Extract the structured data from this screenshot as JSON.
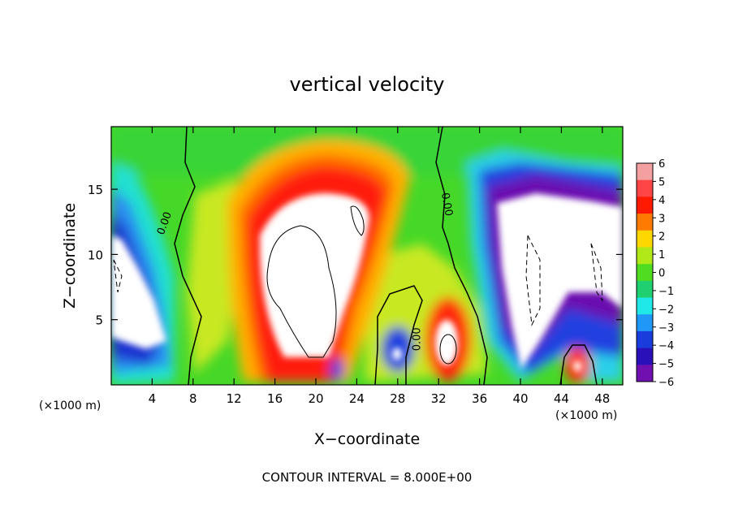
{
  "chart_data": {
    "type": "heatmap",
    "title": "vertical velocity",
    "xlabel": "X−coordinate",
    "ylabel": "Z−coordinate",
    "x_unit_left": "(×1000 m)",
    "x_unit_right": "(×1000 m)",
    "footer": "CONTOUR INTERVAL = 8.000E+00",
    "xlim": [
      0,
      50
    ],
    "ylim": [
      0,
      19.8
    ],
    "x_ticks": [
      "4",
      "8",
      "12",
      "16",
      "20",
      "24",
      "28",
      "32",
      "36",
      "40",
      "44",
      "48"
    ],
    "x_tick_values": [
      4,
      8,
      12,
      16,
      20,
      24,
      28,
      32,
      36,
      40,
      44,
      48
    ],
    "y_ticks": [
      "5",
      "10",
      "15"
    ],
    "y_tick_values": [
      5,
      10,
      15
    ],
    "colorbar": {
      "labels": [
        "6",
        "5",
        "4",
        "3",
        "2",
        "1",
        "0",
        "−1",
        "−2",
        "−3",
        "−4",
        "−5",
        "−6"
      ],
      "values": [
        6,
        5,
        4,
        3,
        2,
        1,
        0,
        -1,
        -2,
        -3,
        -4,
        -5,
        -6
      ],
      "colors": [
        "#f4a0a0",
        "#ff4545",
        "#ff1a00",
        "#ff7a00",
        "#ffd700",
        "#b0e818",
        "#50dc20",
        "#20d070",
        "#20e8e8",
        "#2098f8",
        "#1a3cdc",
        "#2a10b8",
        "#7010b0"
      ]
    },
    "contour_labels": [
      {
        "text": "0.00",
        "x": 5.5,
        "z": 12.3,
        "rotate": -70
      },
      {
        "text": "0.00",
        "x": 32.5,
        "z": 13.8,
        "rotate": 80
      },
      {
        "text": "0.00",
        "x": 30.2,
        "z": 3.5,
        "rotate": -90
      }
    ],
    "features": [
      {
        "kind": "updraft",
        "center_x": 19.5,
        "center_z": 8,
        "note": "white region > 6"
      },
      {
        "kind": "downdraft",
        "center_x": 44,
        "center_z": 8.5,
        "note": "white region < -6"
      },
      {
        "kind": "downdraft",
        "center_x": 2,
        "center_z": 7,
        "note": "white region < -6"
      }
    ]
  }
}
